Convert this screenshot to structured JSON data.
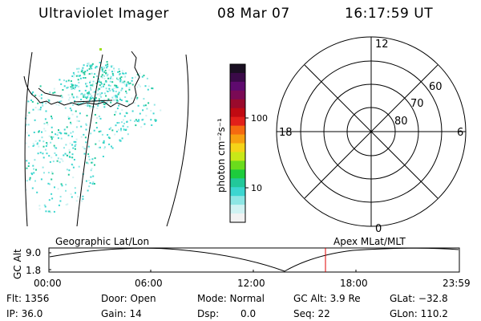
{
  "header": {
    "title": "Ultraviolet Imager",
    "date": "08 Mar 07",
    "time": "16:17:59 UT"
  },
  "colorbar": {
    "unit_label": "photon cm⁻²s⁻¹",
    "ticks": [
      "100",
      "10"
    ],
    "colors": [
      "#1a0f22",
      "#3a0a48",
      "#5e0a6e",
      "#7a0a55",
      "#9a0a2c",
      "#c00a12",
      "#e2201a",
      "#f56a10",
      "#f7a010",
      "#f5d418",
      "#c8e818",
      "#6adc1c",
      "#1dcc3c",
      "#22c89a",
      "#3cd6d0",
      "#8de6e4",
      "#d0f2f2",
      "#f2f2f2"
    ]
  },
  "polar": {
    "lat_labels": [
      "80",
      "70",
      "60"
    ],
    "mlt_labels": {
      "top": "12",
      "bottom": "0",
      "left": "18",
      "right": "6"
    }
  },
  "timeline": {
    "left_label": "Geographic Lat/Lon",
    "right_label": "Apex MLat/MLT",
    "axis_title": "GC Alt",
    "y_ticks": [
      "9.0",
      "1.8"
    ],
    "x_ticks": [
      "00:00",
      "06:00",
      "12:00",
      "18:00",
      "23:59"
    ],
    "marker_color": "#e00000"
  },
  "info": {
    "flt": "Flt: 1356",
    "ip": "IP: 36.0",
    "door": "Door: Open",
    "gain": "Gain: 14",
    "mode": "Mode: Normal",
    "dsp_label": "Dsp:",
    "dsp_value": "0.0",
    "gc_alt": "GC Alt: 3.9 Re",
    "seq": "Seq: 22",
    "glat": "GLat: −32.8",
    "glon": "GLon: 110.2"
  }
}
